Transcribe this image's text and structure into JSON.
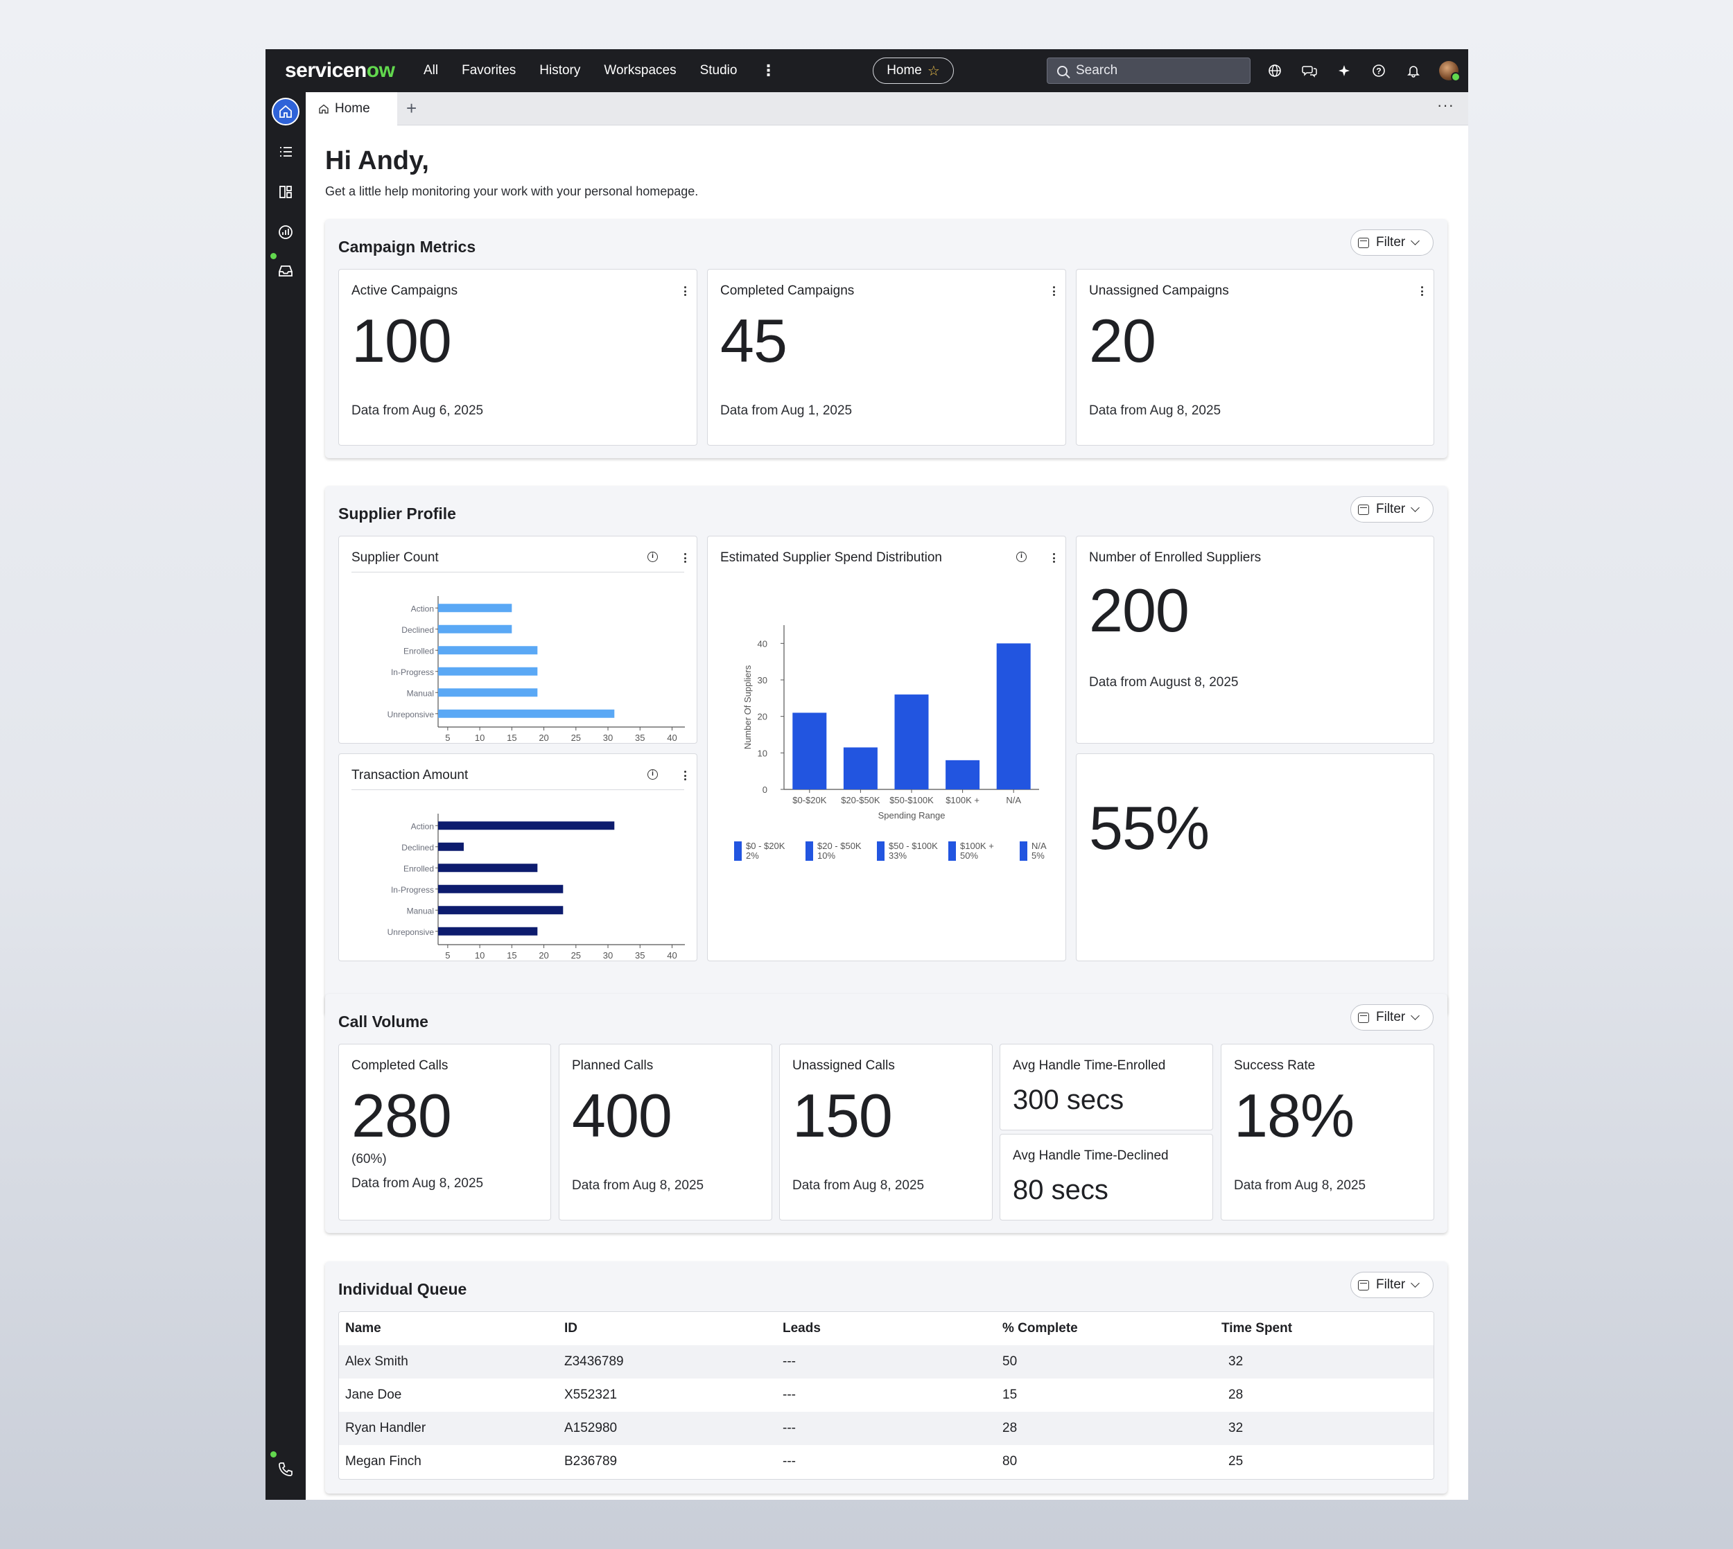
{
  "topbar": {
    "logo_main": "servicen",
    "logo_accent": "ow",
    "nav": [
      "All",
      "Favorites",
      "History",
      "Workspaces",
      "Studio"
    ],
    "home_label": "Home",
    "search_placeholder": "Search"
  },
  "tabs": {
    "home_label": "Home",
    "add": "+",
    "more": "···"
  },
  "greeting": "Hi Andy,",
  "subgreeting": "Get a little help monitoring your work with your personal homepage.",
  "filter_label": "Filter",
  "campaign": {
    "title": "Campaign Metrics",
    "cards": [
      {
        "title": "Active Campaigns",
        "value": "100",
        "foot": "Data from Aug 6, 2025"
      },
      {
        "title": "Completed Campaigns",
        "value": "45",
        "foot": "Data from Aug 1, 2025"
      },
      {
        "title": "Unassigned Campaigns",
        "value": "20",
        "foot": "Data from Aug 8, 2025"
      }
    ]
  },
  "supplier": {
    "title": "Supplier Profile",
    "count_title": "Supplier Count",
    "transaction_title": "Transaction Amount",
    "spend_title": "Estimated Supplier Spend Distribution",
    "enrolled_title": "Number of Enrolled Suppliers",
    "enrolled_value": "200",
    "enrolled_foot": "Data from August 8, 2025",
    "percent_value": "55%"
  },
  "chart_data": [
    {
      "type": "bar",
      "orientation": "horizontal",
      "title": "Supplier Count",
      "categories": [
        "Action",
        "Declined",
        "Enrolled",
        "In-Progress",
        "Manual",
        "Unreponsive"
      ],
      "values": [
        15,
        15,
        19,
        19,
        19,
        31
      ],
      "xticks": [
        5,
        10,
        15,
        20,
        25,
        30,
        35,
        40
      ],
      "xlim": [
        3.5,
        42
      ],
      "color": "#5aa8f5"
    },
    {
      "type": "bar",
      "orientation": "horizontal",
      "title": "Transaction Amount",
      "categories": [
        "Action",
        "Declined",
        "Enrolled",
        "In-Progress",
        "Manual",
        "Unreponsive"
      ],
      "values": [
        31,
        7.5,
        19,
        23,
        23,
        19
      ],
      "xticks": [
        5,
        10,
        15,
        20,
        25,
        30,
        35,
        40
      ],
      "xlim": [
        3.5,
        42
      ],
      "color": "#0d1c6e"
    },
    {
      "type": "bar",
      "title": "Estimated Supplier Spend Distribution",
      "categories": [
        "$0-$20K",
        "$20-$50K",
        "$50-$100K",
        "$100K +",
        "N/A"
      ],
      "values": [
        21,
        11.5,
        26,
        8,
        40
      ],
      "ylim": [
        0,
        45
      ],
      "yticks": [
        0,
        10,
        20,
        30,
        40
      ],
      "xlabel": "Spending Range",
      "ylabel": "Number Of Suppliers",
      "color": "#2255e0",
      "legend": [
        {
          "label": "$0 - $20K",
          "pct": "2%"
        },
        {
          "label": "$20 - $50K",
          "pct": "10%"
        },
        {
          "label": "$50 - $100K",
          "pct": "33%"
        },
        {
          "label": "$100K +",
          "pct": "50%"
        },
        {
          "label": "N/A",
          "pct": "5%"
        }
      ],
      "legend_position": "bottom"
    }
  ],
  "calls": {
    "title": "Call Volume",
    "completed": {
      "title": "Completed Calls",
      "value": "280",
      "sub": "(60%)",
      "foot": "Data from Aug 8, 2025"
    },
    "planned": {
      "title": "Planned Calls",
      "value": "400",
      "foot": "Data from Aug 8, 2025"
    },
    "unassigned": {
      "title": "Unassigned Calls",
      "value": "150",
      "foot": "Data from Aug 8, 2025"
    },
    "aht_enrolled": {
      "title": "Avg Handle Time-Enrolled",
      "value": "300 secs"
    },
    "aht_declined": {
      "title": "Avg Handle Time-Declined",
      "value": "80 secs"
    },
    "success": {
      "title": "Success Rate",
      "value": "18%",
      "foot": "Data from Aug 8, 2025"
    }
  },
  "queue": {
    "title": "Individual Queue",
    "columns": [
      "Name",
      "ID",
      "Leads",
      "% Complete",
      "Time Spent"
    ],
    "rows": [
      [
        "Alex Smith",
        "Z3436789",
        "---",
        "50",
        "32"
      ],
      [
        "Jane Doe",
        "X552321",
        "---",
        "15",
        "28"
      ],
      [
        "Ryan Handler",
        "A152980",
        "---",
        "28",
        "32"
      ],
      [
        "Megan Finch",
        "B236789",
        "---",
        "80",
        "25"
      ]
    ]
  },
  "icons": {
    "rail": [
      "home-icon",
      "list-icon",
      "dashboard-icon",
      "analytics-icon",
      "inbox-icon",
      "phone-icon"
    ],
    "topbar": [
      "globe-icon",
      "chat-icon",
      "sparkle-icon",
      "help-icon",
      "bell-icon"
    ]
  },
  "colors": {
    "accent": "#2f63d8",
    "brand_green": "#62d84e",
    "topbar": "#1d1e22"
  }
}
